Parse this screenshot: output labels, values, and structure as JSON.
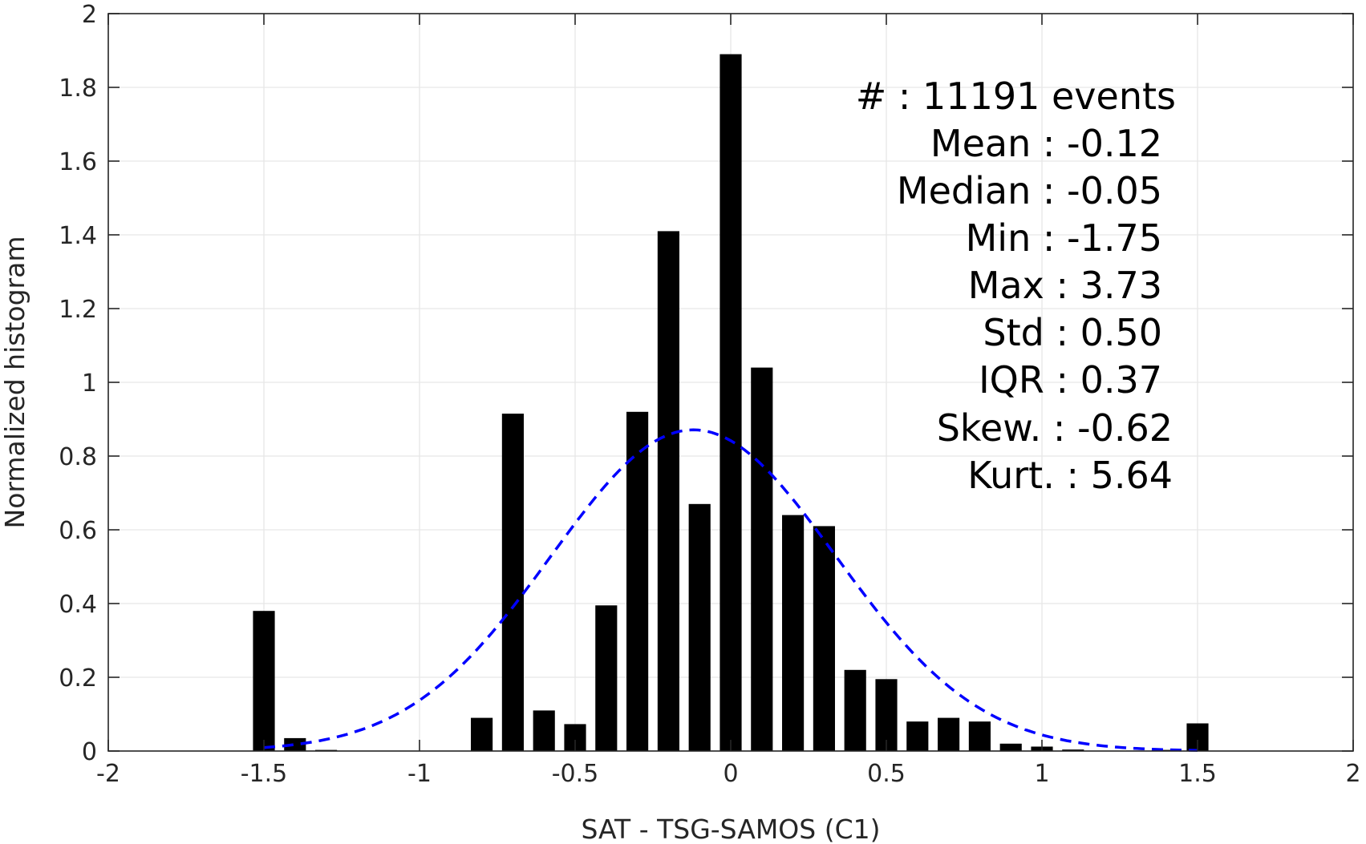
{
  "chart_data": {
    "type": "bar",
    "title": "",
    "xlabel": "SAT - TSG-SAMOS (C1)",
    "ylabel": "Normalized histogram",
    "xlim": [
      -2,
      2
    ],
    "ylim": [
      0,
      2
    ],
    "grid": true,
    "x_ticks": [
      "-2",
      "-1.5",
      "-1",
      "-0.5",
      "0",
      "0.5",
      "1",
      "1.5",
      "2"
    ],
    "y_ticks": [
      "0",
      "0.2",
      "0.4",
      "0.6",
      "0.8",
      "1",
      "1.2",
      "1.4",
      "1.6",
      "1.8",
      "2"
    ],
    "bin_width": 0.1,
    "bars": [
      {
        "x": -1.5,
        "y": 0.38
      },
      {
        "x": -1.4,
        "y": 0.035
      },
      {
        "x": -1.3,
        "y": 0.003
      },
      {
        "x": -0.8,
        "y": 0.09
      },
      {
        "x": -0.7,
        "y": 0.915
      },
      {
        "x": -0.6,
        "y": 0.11
      },
      {
        "x": -0.5,
        "y": 0.073
      },
      {
        "x": -0.4,
        "y": 0.395
      },
      {
        "x": -0.3,
        "y": 0.92
      },
      {
        "x": -0.2,
        "y": 1.41
      },
      {
        "x": -0.1,
        "y": 0.67
      },
      {
        "x": 0.0,
        "y": 1.89
      },
      {
        "x": 0.1,
        "y": 1.04
      },
      {
        "x": 0.2,
        "y": 0.64
      },
      {
        "x": 0.3,
        "y": 0.61
      },
      {
        "x": 0.4,
        "y": 0.22
      },
      {
        "x": 0.5,
        "y": 0.195
      },
      {
        "x": 0.6,
        "y": 0.08
      },
      {
        "x": 0.7,
        "y": 0.09
      },
      {
        "x": 0.8,
        "y": 0.08
      },
      {
        "x": 0.9,
        "y": 0.02
      },
      {
        "x": 1.0,
        "y": 0.012
      },
      {
        "x": 1.1,
        "y": 0.004
      },
      {
        "x": 1.4,
        "y": 0.003
      },
      {
        "x": 1.5,
        "y": 0.075
      }
    ],
    "fit_curve": {
      "style": "dashed",
      "color": "#0000ff",
      "mean": -0.12,
      "std": 0.458,
      "x_range": [
        -1.5,
        1.5
      ]
    },
    "bar_color": "#000000",
    "grid_color": "#e6e6e6"
  },
  "stats": [
    {
      "label": "#  : 11191 events"
    },
    {
      "label": "Mean : -0.12"
    },
    {
      "label": "Median : -0.05"
    },
    {
      "label": "Min : -1.75"
    },
    {
      "label": "Max : 3.73"
    },
    {
      "label": "Std : 0.50"
    },
    {
      "label": "IQR : 0.37"
    },
    {
      "label": "Skew. : -0.62"
    },
    {
      "label": "Kurt. : 5.64"
    }
  ]
}
